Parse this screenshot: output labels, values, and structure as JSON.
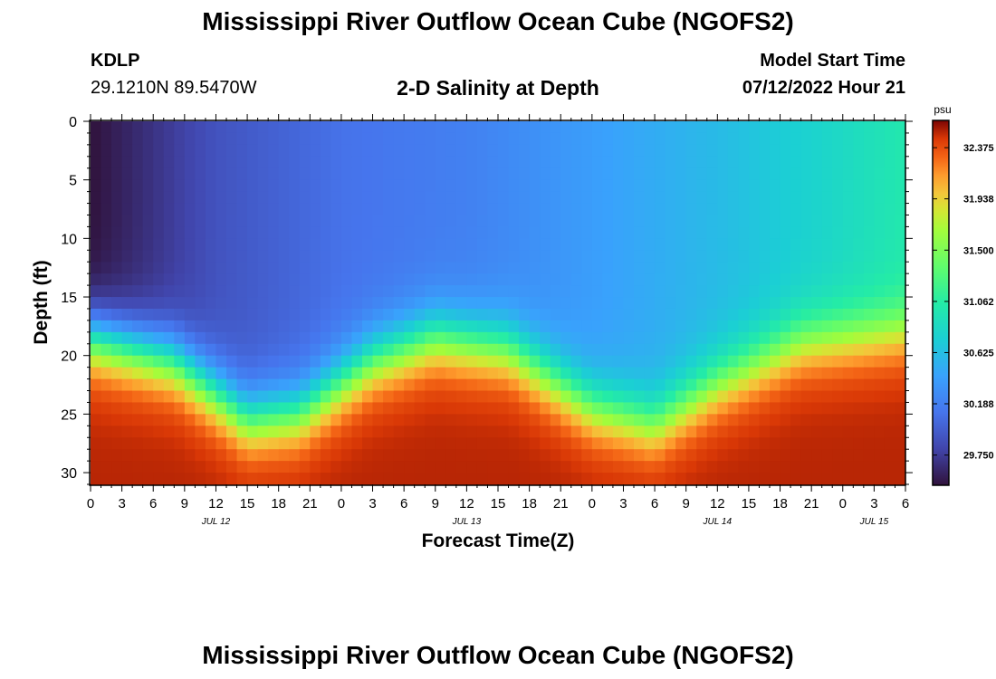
{
  "header": {
    "title": "Mississippi River Outflow Ocean Cube (NGOFS2)",
    "station_id": "KDLP",
    "station_coords": "29.1210N  89.5470W",
    "subtitle": "2-D Salinity at Depth",
    "model_start_label": "Model Start Time",
    "model_start_value": "07/12/2022 Hour 21"
  },
  "footer": {
    "title_repeat": "Mississippi River Outflow Ocean Cube (NGOFS2)"
  },
  "chart_data": {
    "type": "heatmap",
    "xlabel": "Forecast Time(Z)",
    "ylabel": "Depth (ft)",
    "x_tick_labels": [
      "0",
      "3",
      "6",
      "9",
      "12",
      "15",
      "18",
      "21",
      "0",
      "3",
      "6",
      "9",
      "12",
      "15",
      "18",
      "21",
      "0",
      "3",
      "6",
      "9",
      "12",
      "15",
      "18",
      "21",
      "0",
      "3",
      "6"
    ],
    "date_labels": [
      {
        "label": "JUL 12",
        "hour_index": 12
      },
      {
        "label": "JUL 13",
        "hour_index": 36
      },
      {
        "label": "JUL 14",
        "hour_index": 60
      },
      {
        "label": "JUL 15",
        "hour_index": 75
      }
    ],
    "x_range_hours": [
      0,
      78
    ],
    "y_ticks": [
      0,
      5,
      10,
      15,
      20,
      25,
      30
    ],
    "y_range": [
      0,
      31
    ],
    "colorbar": {
      "unit": "psu",
      "ticks": [
        32.375,
        31.938,
        31.5,
        31.062,
        30.625,
        30.188,
        29.75
      ],
      "range": [
        29.5,
        32.6
      ]
    },
    "cell_size": {
      "hours": 1,
      "ft": 1
    },
    "halocline_depth_profile": [
      {
        "hour": 0,
        "depth": 18.5
      },
      {
        "hour": 8,
        "depth": 20.5
      },
      {
        "hour": 15,
        "depth": 25.5
      },
      {
        "hour": 20,
        "depth": 25.0
      },
      {
        "hour": 27,
        "depth": 20.5
      },
      {
        "hour": 33,
        "depth": 18.5
      },
      {
        "hour": 40,
        "depth": 19.5
      },
      {
        "hour": 48,
        "depth": 24.5
      },
      {
        "hour": 54,
        "depth": 26.0
      },
      {
        "hour": 60,
        "depth": 22.5
      },
      {
        "hour": 68,
        "depth": 19.0
      },
      {
        "hour": 78,
        "depth": 18.0
      }
    ],
    "surface_salinity_profile": [
      {
        "hour": 0,
        "value": 29.5
      },
      {
        "hour": 12,
        "value": 29.9
      },
      {
        "hour": 24,
        "value": 30.1
      },
      {
        "hour": 36,
        "value": 30.2
      },
      {
        "hour": 48,
        "value": 30.4
      },
      {
        "hour": 60,
        "value": 30.6
      },
      {
        "hour": 70,
        "value": 30.8
      },
      {
        "hour": 78,
        "value": 31.0
      }
    ],
    "bottom_salinity": 32.5
  }
}
